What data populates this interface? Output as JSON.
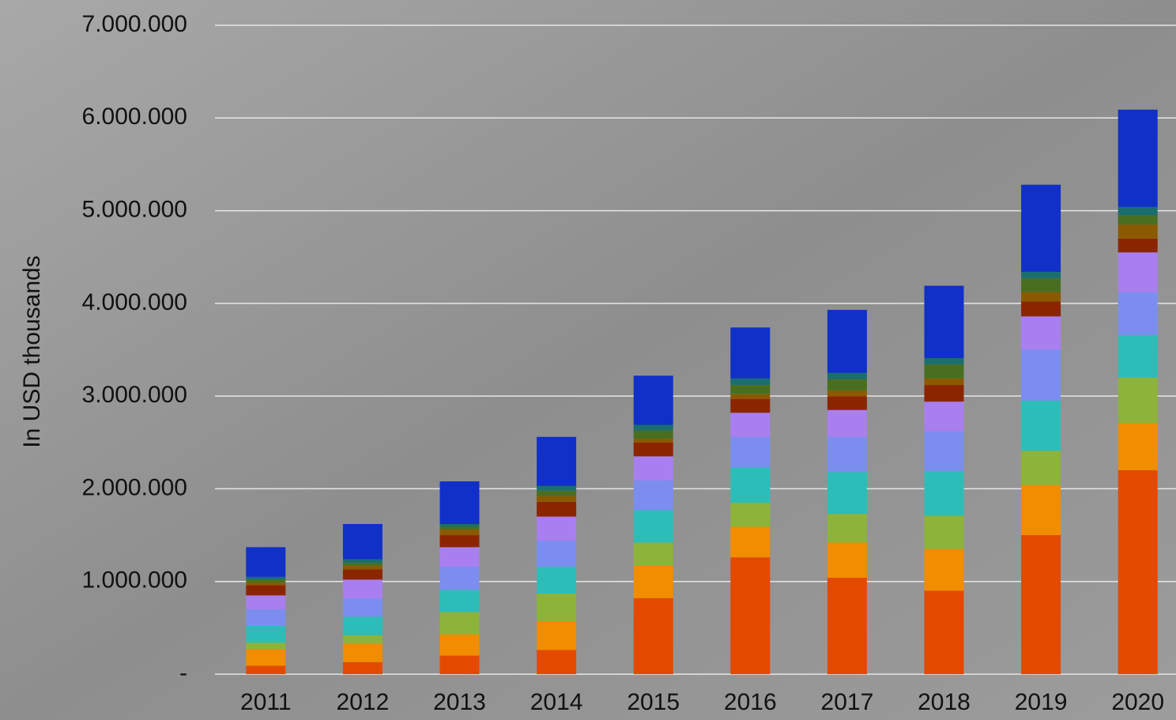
{
  "chart_data": {
    "type": "stacked_bar",
    "y_axis_label": "In USD thousands",
    "categories": [
      "2011",
      "2012",
      "2013",
      "2014",
      "2015",
      "2016",
      "2017",
      "2018",
      "2019",
      "2020"
    ],
    "series": [
      {
        "color": "#e34a00",
        "values": [
          90000,
          130000,
          200000,
          260000,
          820000,
          1260000,
          1040000,
          900000,
          1500000,
          2200000
        ]
      },
      {
        "color": "#f28c00",
        "values": [
          180000,
          200000,
          230000,
          310000,
          350000,
          330000,
          380000,
          450000,
          540000,
          510000
        ]
      },
      {
        "color": "#8db33a",
        "values": [
          70000,
          90000,
          240000,
          300000,
          250000,
          260000,
          310000,
          360000,
          370000,
          490000
        ]
      },
      {
        "color": "#2dbdb8",
        "values": [
          180000,
          200000,
          240000,
          290000,
          350000,
          380000,
          450000,
          480000,
          540000,
          460000
        ]
      },
      {
        "color": "#7b8ef0",
        "values": [
          180000,
          200000,
          250000,
          280000,
          320000,
          330000,
          380000,
          430000,
          550000,
          460000
        ]
      },
      {
        "color": "#a97ff0",
        "values": [
          150000,
          200000,
          210000,
          260000,
          260000,
          260000,
          290000,
          320000,
          360000,
          430000
        ]
      },
      {
        "color": "#8b2500",
        "values": [
          110000,
          110000,
          130000,
          160000,
          150000,
          150000,
          150000,
          180000,
          160000,
          150000
        ]
      },
      {
        "color": "#8b5a00",
        "values": [
          30000,
          40000,
          60000,
          60000,
          40000,
          50000,
          60000,
          70000,
          100000,
          150000
        ]
      },
      {
        "color": "#4a6e20",
        "values": [
          30000,
          30000,
          30000,
          60000,
          90000,
          100000,
          120000,
          150000,
          150000,
          100000
        ]
      },
      {
        "color": "#1a6e6e",
        "values": [
          30000,
          40000,
          30000,
          50000,
          60000,
          70000,
          70000,
          70000,
          70000,
          90000
        ]
      },
      {
        "color": "#1030c8",
        "values": [
          320000,
          380000,
          460000,
          530000,
          530000,
          550000,
          680000,
          780000,
          940000,
          1050000
        ]
      }
    ],
    "ylim": [
      0,
      7000000
    ],
    "yticks": [
      {
        "value": 0,
        "label": "-"
      },
      {
        "value": 1000000,
        "label": "1.000.000"
      },
      {
        "value": 2000000,
        "label": "2.000.000"
      },
      {
        "value": 3000000,
        "label": "3.000.000"
      },
      {
        "value": 4000000,
        "label": "4.000.000"
      },
      {
        "value": 5000000,
        "label": "5.000.000"
      },
      {
        "value": 6000000,
        "label": "6.000.000"
      },
      {
        "value": 7000000,
        "label": "7.000.000"
      }
    ],
    "grid": true
  }
}
